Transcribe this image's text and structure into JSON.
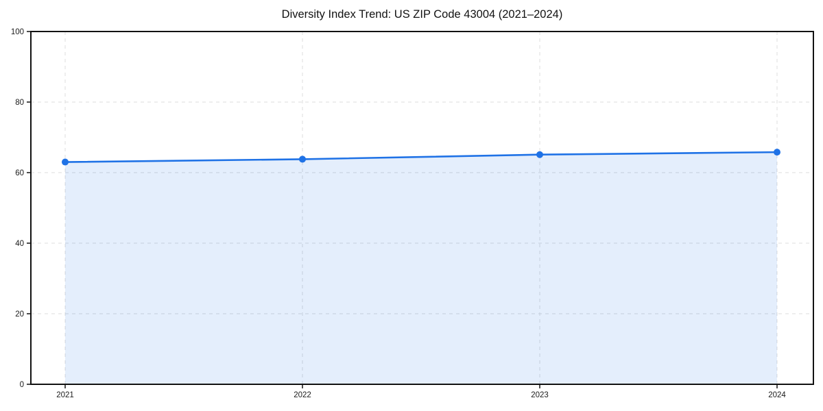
{
  "chart": {
    "title": "Diversity Index Trend: US ZIP Code 43004 (2021–2024)"
  },
  "chart_data": {
    "type": "area",
    "title": "Diversity Index Trend: US ZIP Code 43004 (2021–2024)",
    "xlabel": "",
    "ylabel": "",
    "categories": [
      "2021",
      "2022",
      "2023",
      "2024"
    ],
    "series": [
      {
        "name": "Diversity Index",
        "values": [
          63.0,
          63.8,
          65.1,
          65.8
        ]
      }
    ],
    "ylim": [
      0,
      100
    ],
    "yticks": [
      0,
      20,
      40,
      60,
      80,
      100
    ],
    "grid": true,
    "grid_style": "dashed",
    "legend_position": "none",
    "colors": {
      "line": "#1f72e6",
      "marker": "#1f72e6",
      "fill": "rgba(31,114,230,0.12)",
      "gridline": "#dcdcdc",
      "spine": "#111111",
      "tick_text": "#1a1a1a",
      "background": "#ffffff"
    }
  }
}
